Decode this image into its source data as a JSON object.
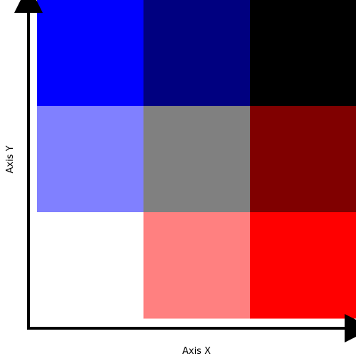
{
  "chart_data": {
    "type": "heatmap",
    "title": "",
    "xlabel": "Axis X",
    "ylabel": "Axis Y",
    "grid": false,
    "legend": "none",
    "n_cols": 3,
    "n_rows": 3,
    "cells": [
      [
        {
          "row": 0,
          "col": 0,
          "color": "#0000ff"
        },
        {
          "row": 0,
          "col": 1,
          "color": "#000080"
        },
        {
          "row": 0,
          "col": 2,
          "color": "#000000"
        }
      ],
      [
        {
          "row": 1,
          "col": 0,
          "color": "#8080ff"
        },
        {
          "row": 1,
          "col": 1,
          "color": "#808080"
        },
        {
          "row": 1,
          "col": 2,
          "color": "#800000"
        }
      ],
      [
        {
          "row": 2,
          "col": 0,
          "color": "#ffffff"
        },
        {
          "row": 2,
          "col": 1,
          "color": "#ff8080"
        },
        {
          "row": 2,
          "col": 2,
          "color": "#ff0000"
        }
      ]
    ]
  }
}
